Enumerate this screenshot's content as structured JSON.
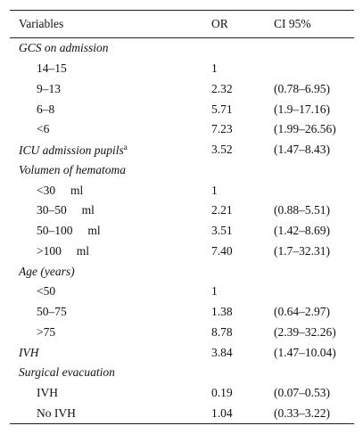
{
  "header": {
    "variables": "Variables",
    "or": "OR",
    "ci": "CI 95%"
  },
  "rows": [
    {
      "kind": "group",
      "label": "GCS on admission",
      "or": "",
      "ci": ""
    },
    {
      "kind": "sub",
      "label": "14–15",
      "or": "1",
      "ci": ""
    },
    {
      "kind": "sub",
      "label": "9–13",
      "or": "2.32",
      "ci": "(0.78–6.95)"
    },
    {
      "kind": "sub",
      "label": "6–8",
      "or": "5.71",
      "ci": "(1.9–17.16)"
    },
    {
      "kind": "sub",
      "label": "<6",
      "or": "7.23",
      "ci": "(1.99–26.56)"
    },
    {
      "kind": "group",
      "label": "ICU admission pupils",
      "sup": "a",
      "or": "3.52",
      "ci": "(1.47–8.43)"
    },
    {
      "kind": "group",
      "label": "Volumen of hematoma",
      "or": "",
      "ci": ""
    },
    {
      "kind": "sub",
      "label": "<30     ml",
      "or": "1",
      "ci": ""
    },
    {
      "kind": "sub",
      "label": "30–50     ml",
      "or": "2.21",
      "ci": "(0.88–5.51)"
    },
    {
      "kind": "sub",
      "label": "50–100     ml",
      "or": "3.51",
      "ci": "(1.42–8.69)"
    },
    {
      "kind": "sub",
      "label": ">100     ml",
      "or": "7.40",
      "ci": "(1.7–32.31)"
    },
    {
      "kind": "group",
      "label": "Age (years)",
      "or": "",
      "ci": ""
    },
    {
      "kind": "sub",
      "label": "<50",
      "or": "1",
      "ci": ""
    },
    {
      "kind": "sub",
      "label": "50–75",
      "or": "1.38",
      "ci": "(0.64–2.97)"
    },
    {
      "kind": "sub",
      "label": ">75",
      "or": "8.78",
      "ci": "(2.39–32.26)"
    },
    {
      "kind": "group",
      "label": "IVH",
      "or": "3.84",
      "ci": "(1.47–10.04)"
    },
    {
      "kind": "group",
      "label": "Surgical evacuation",
      "or": "",
      "ci": ""
    },
    {
      "kind": "sub",
      "label": "IVH",
      "or": "0.19",
      "ci": "(0.07–0.53)"
    },
    {
      "kind": "sub",
      "label": "No IVH",
      "or": "1.04",
      "ci": "(0.33–3.22)"
    }
  ]
}
